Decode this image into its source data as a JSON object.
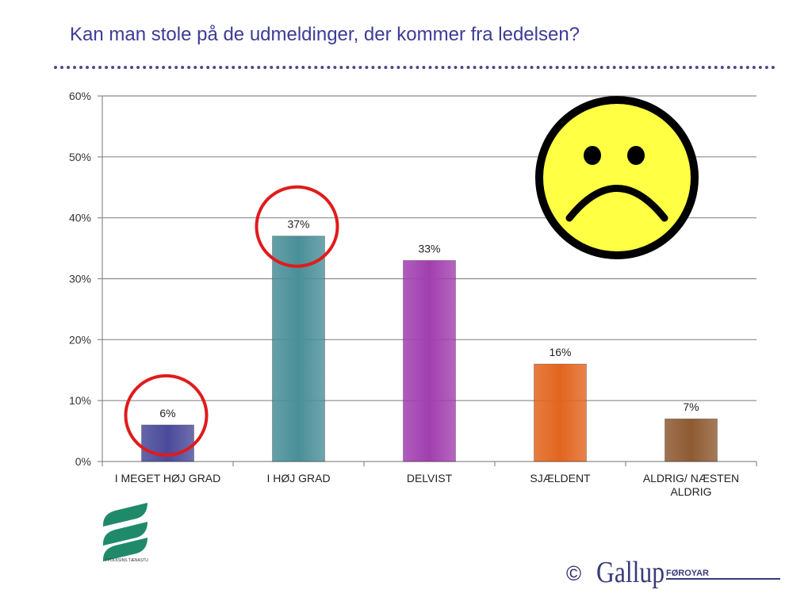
{
  "slide": {
    "title": "Kan man stole på de udmeldinger, der kommer fra ledelsen?"
  },
  "chart_data": {
    "type": "bar",
    "categories": [
      "I MEGET HØJ GRAD",
      "I HØJ GRAD",
      "DELVIST",
      "SJÆLDENT",
      "ALDRIG/ NÆSTEN ALDRIG"
    ],
    "category_lines": [
      [
        "I MEGET HØJ GRAD"
      ],
      [
        "I HØJ GRAD"
      ],
      [
        "DELVIST"
      ],
      [
        "SJÆLDENT"
      ],
      [
        "ALDRIG/ NÆSTEN",
        "ALDRIG"
      ]
    ],
    "values": [
      6,
      37,
      33,
      16,
      7
    ],
    "value_labels": [
      "6%",
      "37%",
      "33%",
      "16%",
      "7%"
    ],
    "bar_colors": [
      "#4a4a9a",
      "#4a8f98",
      "#a23fb0",
      "#e2651f",
      "#8e5a32"
    ],
    "ylim": [
      0,
      60
    ],
    "yticks": [
      "0%",
      "10%",
      "20%",
      "30%",
      "40%",
      "50%",
      "60%"
    ],
    "grid": true,
    "highlighted_categories": [
      "I MEGET HØJ GRAD",
      "I HØJ GRAD"
    ],
    "highlight_color": "#e01b1b"
  },
  "decorations": {
    "sad_face_icon": "sad-face-icon",
    "sad_face_color": "#ffff44",
    "logo_caption": "- Í FÓLKSINS TÆNASTU",
    "logo_color": "#1f8a6a",
    "copyright_symbol": "©",
    "brand_name": "Gallup",
    "brand_suffix": "FØROYAR"
  }
}
